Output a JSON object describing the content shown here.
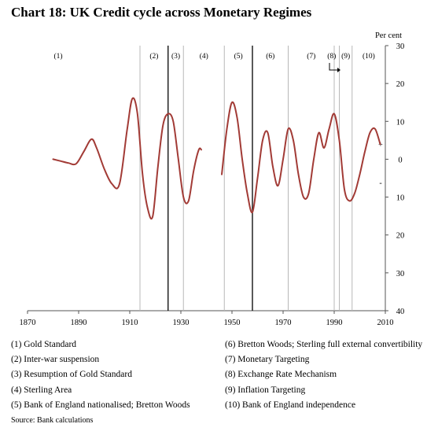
{
  "title": "Chart 18: UK Credit cycle across Monetary Regimes",
  "source": "Source: Bank calculations",
  "legend": [
    "(1)  Gold Standard",
    "(2)  Inter-war suspension",
    "(3)  Resumption of Gold Standard",
    "(4)  Sterling Area",
    "(5)  Bank of England nationalised; Bretton Woods",
    "(6) Bretton Woods; Sterling full external convertibility",
    "(7) Monetary Targeting",
    "(8) Exchange Rate Mechanism",
    "(9) Inflation Targeting",
    "(10) Bank of England independence"
  ],
  "chart_data": {
    "type": "line",
    "title": "Chart 18: UK Credit cycle across Monetary Regimes",
    "ylabel": "Per cent",
    "xlim": [
      1870,
      2010
    ],
    "ylim": [
      -40,
      30
    ],
    "x_ticks": [
      1870,
      1890,
      1910,
      1930,
      1950,
      1970,
      1990,
      2010
    ],
    "y_ticks": [
      30,
      20,
      10,
      0,
      -10,
      -20,
      -30,
      -40
    ],
    "y_tick_labels": [
      "30",
      "20",
      "10",
      "0",
      "10",
      "20",
      "30",
      "40"
    ],
    "y_sign_labels": [
      {
        "value": 4,
        "text": "+"
      },
      {
        "value": -6,
        "text": "-"
      }
    ],
    "line_color": "#a23b36",
    "series": [
      {
        "segment": 1,
        "x": [
          1880,
          1883,
          1886,
          1889,
          1892,
          1895,
          1897,
          1900,
          1903,
          1906,
          1909,
          1911,
          1913,
          1915,
          1917,
          1919,
          1921,
          1923,
          1925,
          1927,
          1929,
          1931,
          1933,
          1935,
          1937,
          1938
        ],
        "y": [
          0,
          -0.5,
          -1,
          -1.2,
          2,
          5.3,
          3,
          -2.5,
          -6.5,
          -6.5,
          8,
          16,
          12,
          -4,
          -13,
          -15,
          -2,
          9,
          12,
          10,
          0,
          -10,
          -11,
          -3,
          2.5,
          2.5
        ]
      },
      {
        "segment": 2,
        "x": [
          1946,
          1948,
          1950,
          1952,
          1954,
          1956,
          1958,
          1960,
          1962,
          1964,
          1966,
          1968,
          1970,
          1972,
          1974,
          1976,
          1978,
          1980,
          1982,
          1984,
          1986,
          1988,
          1990,
          1992,
          1994,
          1996,
          1998,
          2000,
          2002,
          2004,
          2006,
          2008
        ],
        "y": [
          -4,
          8,
          15,
          11,
          0,
          -9,
          -14,
          -5,
          5,
          7,
          -2,
          -7,
          0,
          8,
          5,
          -4,
          -10,
          -9,
          0,
          7,
          3,
          8,
          12,
          5,
          -8,
          -11,
          -9,
          -4,
          2,
          7,
          8,
          4
        ]
      }
    ],
    "regime_lines": [
      {
        "x": 1914,
        "style": "thin"
      },
      {
        "x": 1925,
        "style": "thick"
      },
      {
        "x": 1931,
        "style": "thin"
      },
      {
        "x": 1947,
        "style": "thin"
      },
      {
        "x": 1958,
        "style": "thick"
      },
      {
        "x": 1972,
        "style": "thin"
      },
      {
        "x": 1990,
        "style": "thin"
      },
      {
        "x": 1992,
        "style": "thin"
      },
      {
        "x": 1997,
        "style": "thin"
      }
    ],
    "regime_labels": [
      {
        "x": 1882,
        "text": "(1)"
      },
      {
        "x": 1919.5,
        "text": "(2)"
      },
      {
        "x": 1928,
        "text": "(3)"
      },
      {
        "x": 1939,
        "text": "(4)"
      },
      {
        "x": 1952.5,
        "text": "(5)"
      },
      {
        "x": 1965,
        "text": "(6)"
      },
      {
        "x": 1981,
        "text": "(7)"
      },
      {
        "x": 1989,
        "text": "(8)"
      },
      {
        "x": 1994.5,
        "text": "(9)"
      },
      {
        "x": 2003.5,
        "text": "(10)"
      }
    ]
  }
}
